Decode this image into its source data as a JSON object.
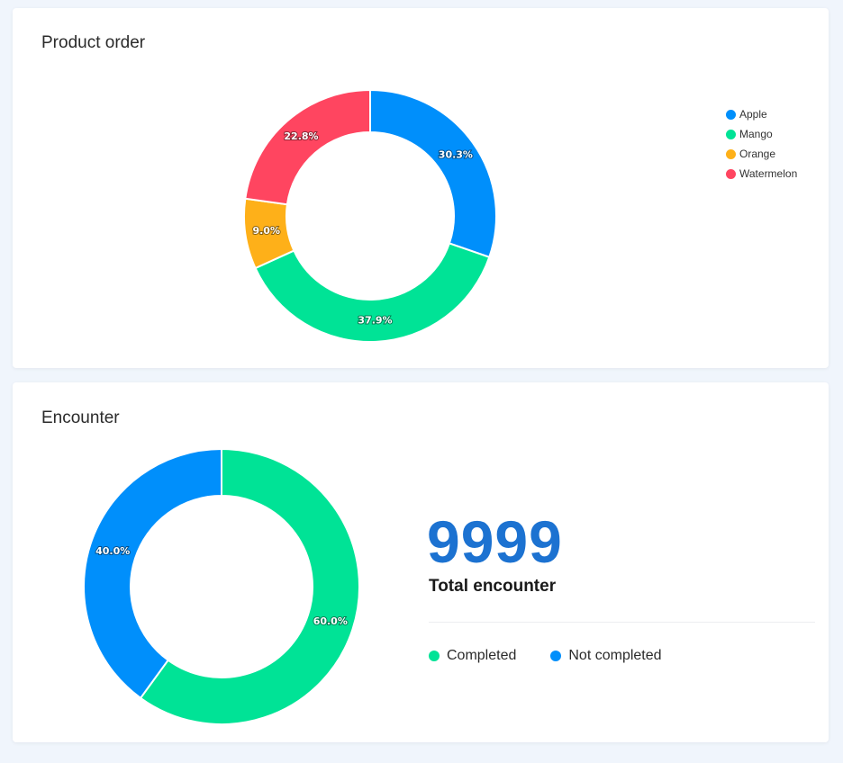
{
  "chart_data": [
    {
      "type": "pie",
      "variant": "donut",
      "title": "Product order",
      "categories": [
        "Apple",
        "Mango",
        "Orange",
        "Watermelon"
      ],
      "values": [
        30.3,
        37.9,
        9.0,
        22.8
      ],
      "value_labels": [
        "30.3%",
        "37.9%",
        "9.0%",
        "22.8%"
      ],
      "colors": [
        "#008ffb",
        "#00e396",
        "#feb019",
        "#ff4560"
      ],
      "legend_position": "right"
    },
    {
      "type": "pie",
      "variant": "donut",
      "title": "Encounter",
      "categories": [
        "Completed",
        "Not completed"
      ],
      "values": [
        60.0,
        40.0
      ],
      "value_labels": [
        "60.0%",
        "40.0%"
      ],
      "colors": [
        "#00e396",
        "#008ffb"
      ],
      "legend_position": "bottom-right"
    }
  ],
  "encounter_summary": {
    "total_value": "9999",
    "total_label": "Total encounter"
  }
}
